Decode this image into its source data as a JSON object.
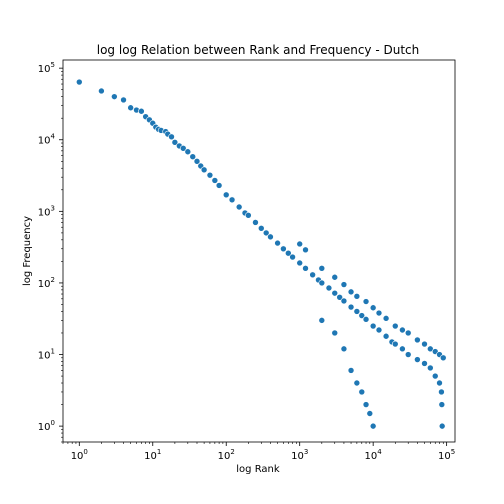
{
  "chart_data": {
    "type": "scatter",
    "title": "log log Relation between Rank and Frequency - Dutch",
    "xlabel": "log Rank",
    "ylabel": "log Frequency",
    "x_scale": "log",
    "y_scale": "log",
    "xlim": [
      0.6,
      130000
    ],
    "ylim": [
      0.6,
      130000
    ],
    "x_ticks": [
      {
        "base": "10",
        "exp": "0",
        "value": 1
      },
      {
        "base": "10",
        "exp": "1",
        "value": 10
      },
      {
        "base": "10",
        "exp": "2",
        "value": 100
      },
      {
        "base": "10",
        "exp": "3",
        "value": 1000
      },
      {
        "base": "10",
        "exp": "4",
        "value": 10000
      },
      {
        "base": "10",
        "exp": "5",
        "value": 100000
      }
    ],
    "y_ticks": [
      {
        "base": "10",
        "exp": "0",
        "value": 1
      },
      {
        "base": "10",
        "exp": "1",
        "value": 10
      },
      {
        "base": "10",
        "exp": "2",
        "value": 100
      },
      {
        "base": "10",
        "exp": "3",
        "value": 1000
      },
      {
        "base": "10",
        "exp": "4",
        "value": 10000
      },
      {
        "base": "10",
        "exp": "5",
        "value": 100000
      }
    ],
    "grid": false,
    "marker_color": "#1f77b4",
    "series": [
      {
        "points": [
          [
            1,
            64000
          ],
          [
            2,
            48000
          ],
          [
            3,
            40000
          ],
          [
            4,
            36000
          ],
          [
            5,
            28000
          ],
          [
            6,
            26000
          ],
          [
            7,
            25000
          ],
          [
            8,
            21000
          ],
          [
            9,
            19000
          ],
          [
            10,
            17000
          ],
          [
            11,
            15000
          ],
          [
            12,
            14000
          ],
          [
            13,
            13500
          ],
          [
            15,
            13000
          ],
          [
            16,
            12000
          ],
          [
            18,
            11000
          ],
          [
            20,
            9200
          ],
          [
            23,
            8200
          ],
          [
            26,
            7600
          ],
          [
            30,
            6800
          ],
          [
            35,
            5800
          ],
          [
            40,
            5000
          ],
          [
            45,
            4300
          ],
          [
            50,
            3800
          ],
          [
            60,
            3200
          ],
          [
            70,
            2700
          ],
          [
            80,
            2300
          ],
          [
            100,
            1700
          ],
          [
            120,
            1450
          ],
          [
            150,
            1150
          ],
          [
            180,
            950
          ],
          [
            200,
            880
          ],
          [
            250,
            700
          ],
          [
            300,
            580
          ],
          [
            350,
            500
          ],
          [
            400,
            440
          ],
          [
            500,
            360
          ],
          [
            600,
            300
          ],
          [
            700,
            260
          ],
          [
            800,
            230
          ],
          [
            1000,
            190
          ],
          [
            1200,
            160
          ],
          [
            1500,
            130
          ],
          [
            1800,
            110
          ],
          [
            2000,
            100
          ],
          [
            2500,
            85
          ],
          [
            3000,
            72
          ],
          [
            3500,
            63
          ],
          [
            4000,
            56
          ],
          [
            5000,
            46
          ],
          [
            6000,
            40
          ],
          [
            7000,
            35
          ],
          [
            8000,
            31
          ],
          [
            10000,
            25
          ],
          [
            12000,
            22
          ],
          [
            15000,
            18
          ],
          [
            18000,
            15
          ],
          [
            20000,
            14
          ],
          [
            25000,
            12
          ],
          [
            30000,
            10
          ],
          [
            40000,
            8.5
          ],
          [
            50000,
            7.5
          ],
          [
            60000,
            6.5
          ],
          [
            70000,
            5
          ],
          [
            80000,
            4
          ],
          [
            85000,
            3
          ],
          [
            86000,
            2
          ],
          [
            87000,
            1
          ],
          [
            1000,
            350
          ],
          [
            1200,
            290
          ],
          [
            2000,
            160
          ],
          [
            3000,
            120
          ],
          [
            4000,
            95
          ],
          [
            5000,
            75
          ],
          [
            6000,
            65
          ],
          [
            8000,
            55
          ],
          [
            10000,
            45
          ],
          [
            12000,
            38
          ],
          [
            15000,
            32
          ],
          [
            20000,
            25
          ],
          [
            25000,
            22
          ],
          [
            30000,
            20
          ],
          [
            40000,
            16
          ],
          [
            50000,
            14
          ],
          [
            60000,
            12
          ],
          [
            70000,
            11
          ],
          [
            80000,
            10
          ],
          [
            90000,
            9
          ],
          [
            2000,
            30
          ],
          [
            3000,
            20
          ],
          [
            4000,
            12
          ],
          [
            5000,
            6
          ],
          [
            6000,
            4
          ],
          [
            7000,
            3
          ],
          [
            8000,
            2
          ],
          [
            9000,
            1.5
          ],
          [
            10000,
            1
          ]
        ]
      }
    ]
  }
}
